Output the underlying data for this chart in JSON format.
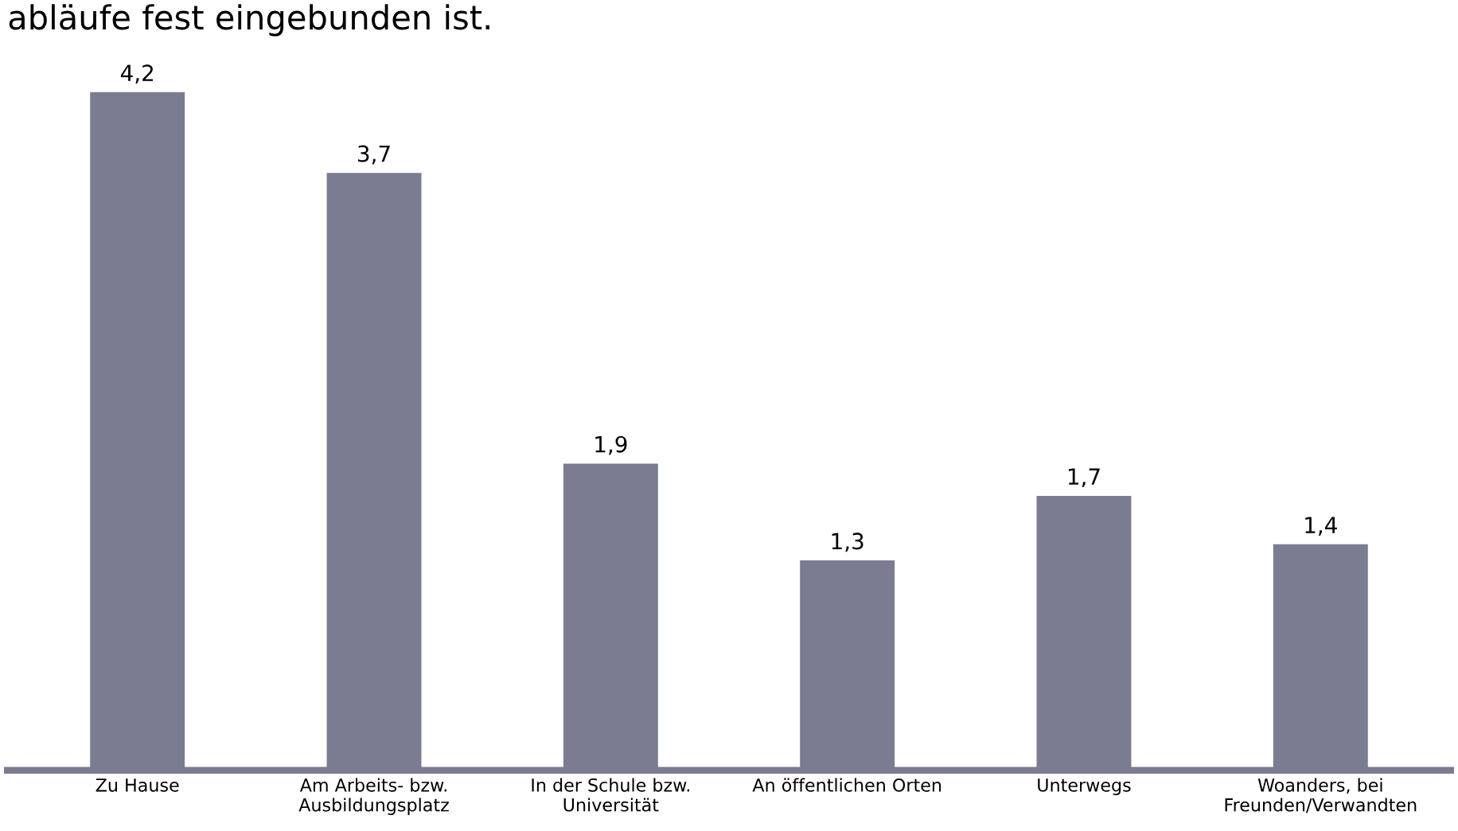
{
  "chart_data": {
    "type": "bar",
    "title": "abläufe fest eingebunden ist.",
    "categories": [
      "Zu Hause",
      "Am Arbeits- bzw.\nAusbildungsplatz",
      "In der Schule bzw.\nUniversität",
      "An öffentlichen Orten",
      "Unterwegs",
      "Woanders, bei\nFreunden/Verwandten"
    ],
    "values": [
      4.2,
      3.7,
      1.9,
      1.3,
      1.7,
      1.4
    ],
    "value_labels": [
      "4,2",
      "3,7",
      "1,9",
      "1,3",
      "1,7",
      "1,4"
    ],
    "color": "#7b7b91",
    "grid": false,
    "legend": false
  }
}
